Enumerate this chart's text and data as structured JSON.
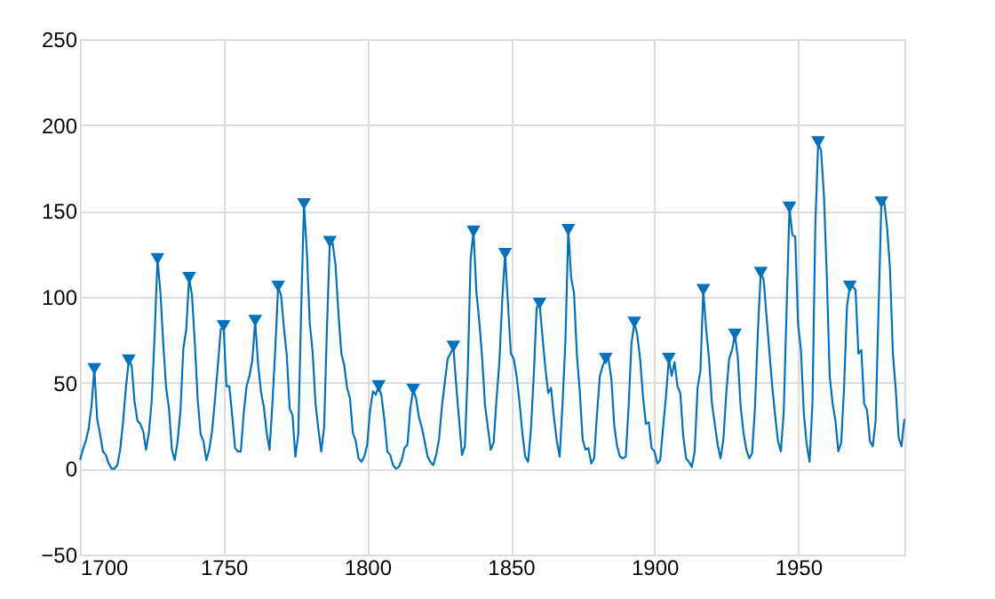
{
  "chart_data": {
    "type": "line",
    "xlim": [
      1700,
      1987
    ],
    "xticks": [
      1700,
      1750,
      1800,
      1850,
      1900,
      1950
    ],
    "ylim": [
      -50,
      250
    ],
    "yticks": [
      -50,
      0,
      50,
      100,
      150,
      200,
      250
    ],
    "grid": true,
    "series": [
      {
        "type": "line",
        "color": "#0072bd",
        "marker": "none",
        "x": [
          1700,
          1701,
          1702,
          1703,
          1704,
          1705,
          1706,
          1707,
          1708,
          1709,
          1710,
          1711,
          1712,
          1713,
          1714,
          1715,
          1716,
          1717,
          1718,
          1719,
          1720,
          1721,
          1722,
          1723,
          1724,
          1725,
          1726,
          1727,
          1728,
          1729,
          1730,
          1731,
          1732,
          1733,
          1734,
          1735,
          1736,
          1737,
          1738,
          1739,
          1740,
          1741,
          1742,
          1743,
          1744,
          1745,
          1746,
          1747,
          1748,
          1749,
          1750,
          1751,
          1752,
          1753,
          1754,
          1755,
          1756,
          1757,
          1758,
          1759,
          1760,
          1761,
          1762,
          1763,
          1764,
          1765,
          1766,
          1767,
          1768,
          1769,
          1770,
          1771,
          1772,
          1773,
          1774,
          1775,
          1776,
          1777,
          1778,
          1779,
          1780,
          1781,
          1782,
          1783,
          1784,
          1785,
          1786,
          1787,
          1788,
          1789,
          1790,
          1791,
          1792,
          1793,
          1794,
          1795,
          1796,
          1797,
          1798,
          1799,
          1800,
          1801,
          1802,
          1803,
          1804,
          1805,
          1806,
          1807,
          1808,
          1809,
          1810,
          1811,
          1812,
          1813,
          1814,
          1815,
          1816,
          1817,
          1818,
          1819,
          1820,
          1821,
          1822,
          1823,
          1824,
          1825,
          1826,
          1827,
          1828,
          1829,
          1830,
          1831,
          1832,
          1833,
          1834,
          1835,
          1836,
          1837,
          1838,
          1839,
          1840,
          1841,
          1842,
          1843,
          1844,
          1845,
          1846,
          1847,
          1848,
          1849,
          1850,
          1851,
          1852,
          1853,
          1854,
          1855,
          1856,
          1857,
          1858,
          1859,
          1860,
          1861,
          1862,
          1863,
          1864,
          1865,
          1866,
          1867,
          1868,
          1869,
          1870,
          1871,
          1872,
          1873,
          1874,
          1875,
          1876,
          1877,
          1878,
          1879,
          1880,
          1881,
          1882,
          1883,
          1884,
          1885,
          1886,
          1887,
          1888,
          1889,
          1890,
          1891,
          1892,
          1893,
          1894,
          1895,
          1896,
          1897,
          1898,
          1899,
          1900,
          1901,
          1902,
          1903,
          1904,
          1905,
          1906,
          1907,
          1908,
          1909,
          1910,
          1911,
          1912,
          1913,
          1914,
          1915,
          1916,
          1917,
          1918,
          1919,
          1920,
          1921,
          1922,
          1923,
          1924,
          1925,
          1926,
          1927,
          1928,
          1929,
          1930,
          1931,
          1932,
          1933,
          1934,
          1935,
          1936,
          1937,
          1938,
          1939,
          1940,
          1941,
          1942,
          1943,
          1944,
          1945,
          1946,
          1947,
          1948,
          1949,
          1950,
          1951,
          1952,
          1953,
          1954,
          1955,
          1956,
          1957,
          1958,
          1959,
          1960,
          1961,
          1962,
          1963,
          1964,
          1965,
          1966,
          1967,
          1968,
          1969,
          1970,
          1971,
          1972,
          1973,
          1974,
          1975,
          1976,
          1977,
          1978,
          1979,
          1980,
          1981,
          1982,
          1983,
          1984,
          1985,
          1986,
          1987
        ],
        "values": [
          5,
          11,
          16,
          23,
          36,
          58,
          29,
          20,
          10,
          8,
          3,
          0,
          0,
          2,
          11,
          27,
          47,
          63,
          60,
          39,
          28,
          26,
          22,
          11,
          21,
          40,
          78,
          122,
          103,
          73,
          47,
          35,
          11,
          5,
          16,
          34,
          70,
          81,
          111,
          101,
          73,
          40,
          20,
          16,
          5,
          11,
          22,
          40,
          60,
          81,
          83,
          48,
          48,
          31,
          12,
          10,
          10,
          32,
          48,
          54,
          63,
          86,
          61,
          45,
          36,
          21,
          11,
          38,
          70,
          106,
          101,
          82,
          66,
          35,
          31,
          7,
          20,
          92,
          154,
          126,
          85,
          68,
          38,
          23,
          10,
          24,
          83,
          132,
          131,
          118,
          90,
          67,
          60,
          47,
          41,
          21,
          16,
          6,
          4,
          7,
          14,
          34,
          45,
          43,
          48,
          42,
          28,
          10,
          8,
          2,
          0,
          1,
          5,
          12,
          14,
          35,
          46,
          41,
          30,
          24,
          16,
          7,
          4,
          2,
          8,
          17,
          36,
          50,
          64,
          67,
          71,
          48,
          28,
          8,
          13,
          57,
          122,
          138,
          103,
          86,
          65,
          37,
          24,
          11,
          15,
          40,
          62,
          98,
          125,
          96,
          67,
          64,
          54,
          39,
          21,
          7,
          4,
          23,
          55,
          94,
          96,
          77,
          59,
          44,
          47,
          30,
          16,
          7,
          38,
          74,
          139,
          111,
          102,
          66,
          45,
          17,
          11,
          12,
          3,
          6,
          32,
          54,
          60,
          64,
          64,
          52,
          25,
          13,
          7,
          6,
          7,
          36,
          73,
          85,
          78,
          64,
          42,
          26,
          27,
          12,
          10,
          3,
          5,
          24,
          42,
          64,
          54,
          62,
          48,
          44,
          19,
          6,
          4,
          1,
          10,
          47,
          57,
          104,
          81,
          64,
          38,
          26,
          14,
          6,
          17,
          44,
          64,
          69,
          78,
          65,
          36,
          21,
          11,
          6,
          9,
          36,
          80,
          114,
          110,
          89,
          68,
          48,
          31,
          16,
          10,
          33,
          93,
          152,
          136,
          135,
          84,
          69,
          32,
          14,
          4,
          38,
          142,
          190,
          185,
          159,
          112,
          54,
          38,
          28,
          10,
          15,
          47,
          94,
          106,
          106,
          104,
          67,
          69,
          38,
          34,
          16,
          13,
          28,
          92,
          155,
          155,
          140,
          116,
          67,
          46,
          18,
          13,
          29
        ]
      },
      {
        "type": "scatter",
        "color": "#0072bd",
        "marker": "triangle",
        "x": [
          1705,
          1717,
          1727,
          1738,
          1750,
          1761,
          1769,
          1778,
          1787,
          1804,
          1816,
          1830,
          1837,
          1848,
          1860,
          1870,
          1883,
          1893,
          1905,
          1917,
          1928,
          1937,
          1947,
          1957,
          1968,
          1979
        ],
        "values": [
          58,
          63,
          122,
          111,
          83,
          86,
          106,
          154,
          132,
          48,
          46,
          71,
          138,
          125,
          96,
          139,
          64,
          85,
          64,
          104,
          78,
          114,
          152,
          190,
          106,
          155
        ]
      }
    ]
  }
}
